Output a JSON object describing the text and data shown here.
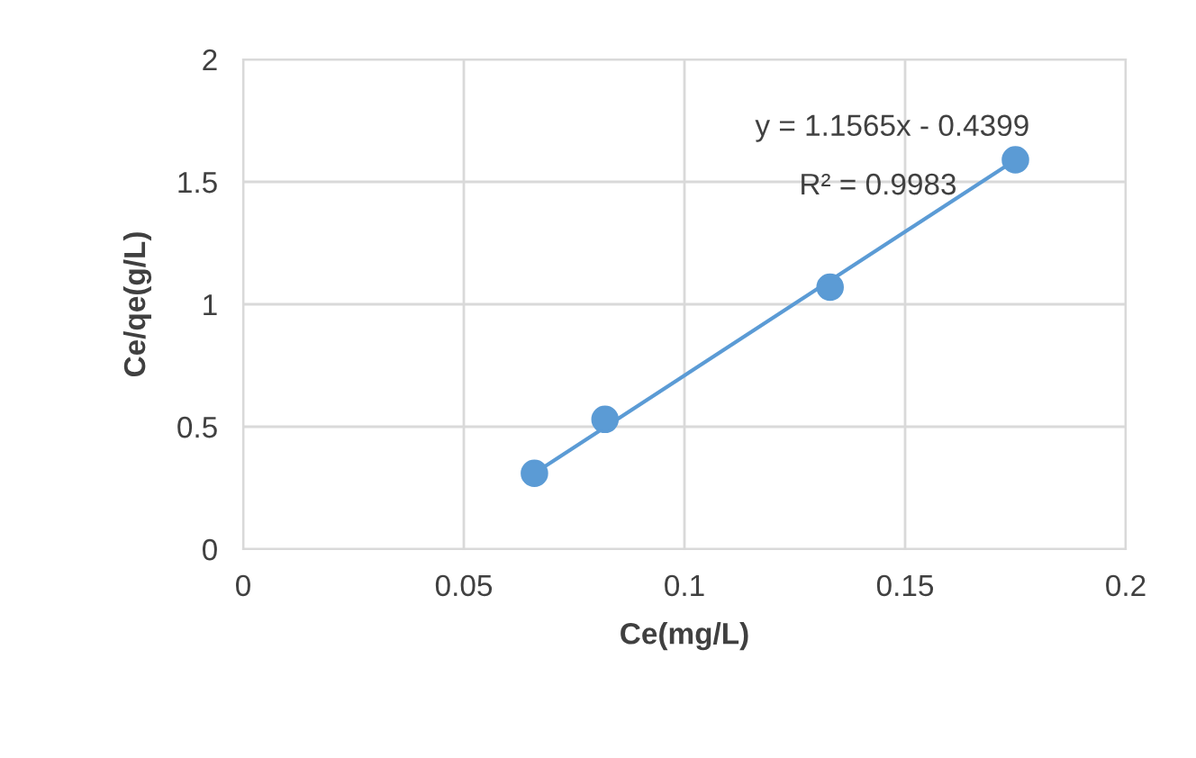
{
  "chart_data": {
    "type": "scatter",
    "xlabel": "Ce(mg/L)",
    "ylabel": "Ce/qe(g/L)",
    "series": [
      {
        "color": "#5b9bd5",
        "x": [
          0.066,
          0.082,
          0.133,
          0.175
        ],
        "values": [
          0.31,
          0.53,
          1.07,
          1.59
        ],
        "marker": "circle"
      },
      {
        "type": "line",
        "color": "#5b9bd5",
        "x": [
          0.066,
          0.175
        ],
        "values": [
          0.31,
          1.59
        ],
        "marker": "none",
        "line_style": "solid"
      }
    ],
    "annotations": [
      "y = 1.1565x - 0.4399",
      "R² = 0.9983"
    ],
    "xlim": [
      0,
      0.2
    ],
    "xticks": [
      0,
      0.05,
      0.1,
      0.15,
      0.2
    ],
    "ylim": [
      0,
      2
    ],
    "yticks": [
      0,
      0.5,
      1,
      1.5,
      2
    ],
    "grid": true,
    "legend": false
  }
}
